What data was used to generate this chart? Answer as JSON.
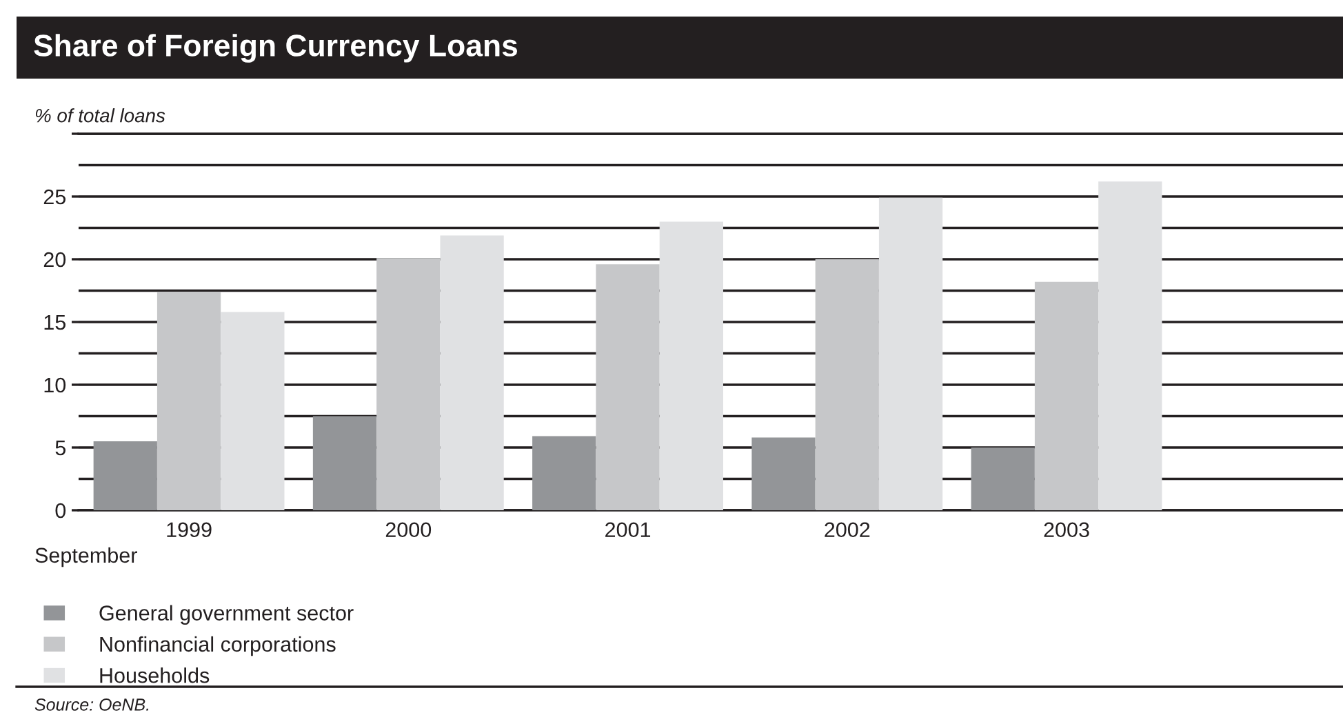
{
  "chart_data": {
    "type": "bar",
    "title": "Share of Foreign Currency Loans",
    "ylabel": "% of total loans",
    "xlabel": "September",
    "categories": [
      "1999",
      "2000",
      "2001",
      "2002",
      "2003"
    ],
    "series": [
      {
        "name": "General government sector",
        "color": "#939598",
        "values": [
          5.5,
          7.5,
          5.9,
          5.8,
          5.0
        ]
      },
      {
        "name": "Nonfinancial corporations",
        "color": "#c6c7c9",
        "values": [
          17.4,
          20.1,
          19.6,
          20.0,
          18.2
        ]
      },
      {
        "name": "Households",
        "color": "#e0e1e3",
        "values": [
          15.8,
          21.9,
          23.0,
          24.9,
          26.2
        ]
      }
    ],
    "ylim": [
      0,
      30
    ],
    "yticks": [
      0,
      {
        "value": 2.5,
        "label": null
      },
      5,
      {
        "value": 7.5,
        "label": null
      },
      10,
      {
        "value": 12.5,
        "label": null
      },
      15,
      {
        "value": 17.5,
        "label": null
      },
      20,
      {
        "value": 22.5,
        "label": null
      },
      25,
      {
        "value": 27.5,
        "label": null
      },
      {
        "value": 30,
        "label": null
      }
    ],
    "grid": "y",
    "legend": "bottom",
    "annotations": [
      "Source: OeNB."
    ]
  }
}
